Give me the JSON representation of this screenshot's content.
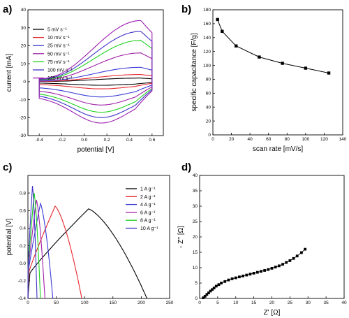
{
  "chart_data": [
    {
      "panel": "a)",
      "type": "line",
      "xlabel": "potential [V]",
      "ylabel": "current [mA]",
      "xlim": [
        -0.5,
        0.7
      ],
      "ylim": [
        -30,
        40
      ],
      "xticks": [
        "-0.4",
        "-0.2",
        "0.0",
        "0.2",
        "0.4",
        "0.6"
      ],
      "yticks": [
        "-30",
        "-20",
        "-10",
        "0",
        "10",
        "20",
        "30",
        "40"
      ],
      "legend_position": "top-left",
      "series": [
        {
          "name": "5 mV s⁻¹",
          "color": "#000000",
          "upper_peak": 2.0,
          "lower_trough": -2.0
        },
        {
          "name": "10 mV s⁻¹",
          "color": "#e8262b",
          "upper_peak": 4.0,
          "lower_trough": -4.0
        },
        {
          "name": "25 mV s⁻¹",
          "color": "#3b3bd6",
          "upper_peak": 8.0,
          "lower_trough": -8.5
        },
        {
          "name": "50 mV s⁻¹",
          "color": "#a020a8",
          "upper_peak": 16.0,
          "lower_trough": -13.0
        },
        {
          "name": "75 mV s⁻¹",
          "color": "#1fd21f",
          "upper_peak": 23.0,
          "lower_trough": -17.0
        },
        {
          "name": "100 mV s⁻¹",
          "color": "#3d32c8",
          "upper_peak": 28.0,
          "lower_trough": -20.0
        },
        {
          "name": "125 mV s⁻¹",
          "color": "#9b1fb0",
          "upper_peak": 34.0,
          "lower_trough": -23.0
        }
      ]
    },
    {
      "panel": "b)",
      "type": "line",
      "xlabel": "scan rate [mV/s]",
      "ylabel": "specific capacitance [F/g]",
      "xlim": [
        0,
        140
      ],
      "ylim": [
        0,
        180
      ],
      "xticks": [
        "0",
        "20",
        "40",
        "60",
        "80",
        "100",
        "120",
        "140"
      ],
      "yticks": [
        "0",
        "20",
        "40",
        "60",
        "80",
        "100",
        "120",
        "140",
        "160",
        "180"
      ],
      "series": [
        {
          "x": [
            5,
            10,
            25,
            50,
            75,
            100,
            125
          ],
          "y": [
            166,
            149,
            128,
            112,
            103,
            96,
            89
          ],
          "marker": "square"
        }
      ]
    },
    {
      "panel": "c)",
      "type": "line",
      "xlabel": "",
      "ylabel": "potential [V]",
      "xlim": [
        0,
        250
      ],
      "ylim": [
        -0.4,
        1.0
      ],
      "xticks": [
        "0",
        "50",
        "100",
        "150",
        "200",
        "250"
      ],
      "yticks": [
        "-0.4",
        "-0.2",
        "0.0",
        "0.2",
        "0.4",
        "0.6",
        "0.8"
      ],
      "legend_position": "top-right",
      "series": [
        {
          "name": "1 A g⁻¹",
          "color": "#000000",
          "x": [
            0,
            107,
            210
          ],
          "y": [
            -0.4,
            0.62,
            -0.4
          ]
        },
        {
          "name": "2 A g⁻¹",
          "color": "#e8262b",
          "x": [
            0,
            48,
            95
          ],
          "y": [
            -0.4,
            0.65,
            -0.4
          ]
        },
        {
          "name": "4 A g⁻¹",
          "color": "#3b3bd6",
          "x": [
            0,
            22,
            44
          ],
          "y": [
            -0.4,
            0.68,
            -0.4
          ]
        },
        {
          "name": "6 A g⁻¹",
          "color": "#a020a8",
          "x": [
            0,
            15,
            30
          ],
          "y": [
            -0.4,
            0.72,
            -0.4
          ]
        },
        {
          "name": "8 A g⁻¹",
          "color": "#1fd21f",
          "x": [
            0,
            11,
            22
          ],
          "y": [
            -0.4,
            0.8,
            -0.4
          ]
        },
        {
          "name": "10 A g⁻¹",
          "color": "#3d32c8",
          "x": [
            0,
            8,
            16
          ],
          "y": [
            -0.4,
            0.88,
            -0.4
          ]
        }
      ]
    },
    {
      "panel": "d)",
      "type": "scatter",
      "xlabel": "Z' [Ω]",
      "ylabel": "- Z'' [Ω]",
      "xlim": [
        0,
        40
      ],
      "ylim": [
        0,
        40
      ],
      "xticks": [
        "0",
        "5",
        "10",
        "15",
        "20",
        "25",
        "30",
        "35",
        "40"
      ],
      "yticks": [
        "0",
        "5",
        "10",
        "15",
        "20",
        "25",
        "30",
        "35",
        "40"
      ],
      "series": [
        {
          "x": [
            1.0,
            1.5,
            2.0,
            2.5,
            3.0,
            3.5,
            4.0,
            4.6,
            5.3,
            6.0,
            7.0,
            8.0,
            9.0,
            10.0,
            11.0,
            12.0,
            13.0,
            14.0,
            15.0,
            16.0,
            17.0,
            18.0,
            19.0,
            20.0,
            21.0,
            22.0,
            23.0,
            24.0,
            25.0,
            26.0,
            27.0,
            28.2,
            29.2
          ],
          "y": [
            0.2,
            0.7,
            1.3,
            1.8,
            2.4,
            2.9,
            3.4,
            4.0,
            4.5,
            5.0,
            5.5,
            6.0,
            6.4,
            6.7,
            7.0,
            7.3,
            7.6,
            7.9,
            8.2,
            8.5,
            8.8,
            9.1,
            9.4,
            9.8,
            10.2,
            10.6,
            11.1,
            11.7,
            12.3,
            13.0,
            13.8,
            14.9,
            16.0
          ],
          "marker": "square"
        }
      ]
    }
  ]
}
